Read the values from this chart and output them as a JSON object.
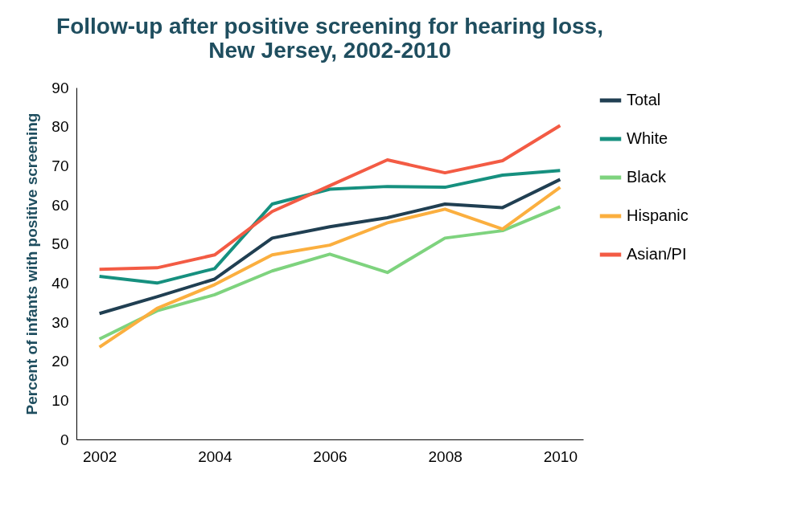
{
  "chart_data": {
    "type": "line",
    "title": "Follow-up after positive screening for hearing loss,\nNew Jersey, 2002-2010",
    "ylabel": "Percent of infants with positive screening",
    "x": [
      2002,
      2003,
      2004,
      2005,
      2006,
      2007,
      2008,
      2009,
      2010
    ],
    "series": [
      {
        "name": "Total",
        "color": "#203f52",
        "values": [
          32.2,
          36.5,
          41.0,
          51.5,
          54.4,
          56.7,
          60.2,
          59.3,
          66.5
        ]
      },
      {
        "name": "White",
        "color": "#16907f",
        "values": [
          41.7,
          40.0,
          43.7,
          60.2,
          64.0,
          64.7,
          64.5,
          67.6,
          68.8
        ]
      },
      {
        "name": "Black",
        "color": "#7ed37e",
        "values": [
          25.7,
          32.9,
          37.0,
          43.1,
          47.4,
          42.7,
          51.5,
          53.4,
          59.5
        ]
      },
      {
        "name": "Hispanic",
        "color": "#fbaf3f",
        "values": [
          23.6,
          33.5,
          39.6,
          47.2,
          49.7,
          55.4,
          58.9,
          53.8,
          64.5
        ]
      },
      {
        "name": "Asian/PI",
        "color": "#f35b44",
        "values": [
          43.5,
          43.9,
          47.2,
          58.3,
          64.9,
          71.5,
          68.2,
          71.3,
          80.3
        ]
      }
    ],
    "xlim": [
      2001.6,
      2010.4
    ],
    "xticks": [
      2002,
      2004,
      2006,
      2008,
      2010
    ],
    "ylim": [
      0,
      90
    ],
    "yticks": [
      0,
      10,
      20,
      30,
      40,
      50,
      60,
      70,
      80,
      90
    ],
    "grid": false,
    "legend": "right",
    "marker": "none",
    "line_style": "solid"
  }
}
